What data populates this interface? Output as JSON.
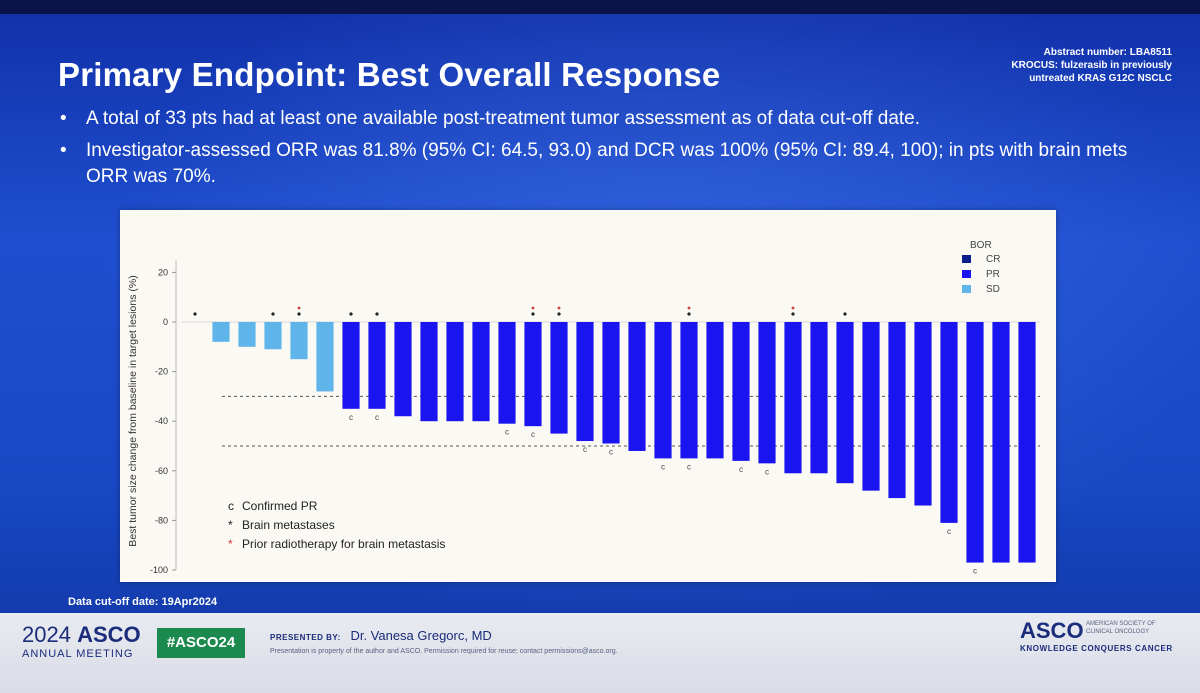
{
  "slide": {
    "title": "Primary Endpoint: Best Overall Response",
    "abstract": [
      "Abstract number: LBA8511",
      "KROCUS: fulzerasib in previously",
      "untreated KRAS G12C NSCLC"
    ],
    "bullets": [
      "A total of 33 pts had at least one available post-treatment tumor assessment as of data cut-off date.",
      "Investigator-assessed ORR was 81.8% (95% CI: 64.5, 93.0) and DCR was 100% (95% CI: 89.4, 100); in pts with brain mets ORR was 70%."
    ],
    "cutoff": "Data cut-off date: 19Apr2024",
    "footer": {
      "year": "2024",
      "asco": "ASCO",
      "annual": "ANNUAL MEETING",
      "hashtag": "#ASCO24",
      "presented_label": "PRESENTED BY:",
      "presenter": "Dr. Vanesa Gregorc, MD",
      "property": "Presentation is property of the author and ASCO. Permission required for reuse; contact permissions@asco.org.",
      "logo": "ASCO",
      "society": "AMERICAN SOCIETY OF CLINICAL ONCOLOGY",
      "tagline": "KNOWLEDGE CONQUERS CANCER"
    }
  },
  "colors": {
    "CR": "#0b1f8c",
    "PR": "#1a14f0",
    "SD": "#5fb5ea",
    "marker_brain": "#222222",
    "marker_radio": "#d23a3a",
    "bg_panel": "#fbf9f4"
  },
  "chart_data": {
    "type": "bar",
    "title": "",
    "ylabel": "Best tumor size change from baseline in target lesions (%)",
    "ylim": [
      -100,
      25
    ],
    "yticks": [
      20,
      0,
      -20,
      -40,
      -60,
      -80,
      -100
    ],
    "reference_lines": [
      -30,
      -50
    ],
    "legend_title": "BOR",
    "legend_items": [
      "CR",
      "PR",
      "SD"
    ],
    "annotation_lines": [
      {
        "symbol": "c",
        "text": "Confirmed PR"
      },
      {
        "symbol": "*",
        "text": "Brain metastases"
      },
      {
        "symbol": "*",
        "text": "Prior radiotherapy for brain metastasis"
      }
    ],
    "values": [
      0,
      -8,
      -10,
      -11,
      -15,
      -28,
      -35,
      -35,
      -38,
      -40,
      -40,
      -40,
      -41,
      -42,
      -45,
      -48,
      -49,
      -52,
      -55,
      -55,
      -55,
      -56,
      -57,
      -61,
      -61,
      -65,
      -68,
      -71,
      -74,
      -81,
      -97,
      -97,
      -97
    ],
    "bor": [
      "SD",
      "SD",
      "SD",
      "SD",
      "SD",
      "SD",
      "PR",
      "PR",
      "PR",
      "PR",
      "PR",
      "PR",
      "PR",
      "PR",
      "PR",
      "PR",
      "PR",
      "PR",
      "PR",
      "PR",
      "PR",
      "PR",
      "PR",
      "PR",
      "PR",
      "PR",
      "PR",
      "PR",
      "PR",
      "PR",
      "PR",
      "PR",
      "PR"
    ],
    "confirmed": [
      6,
      7,
      12,
      13,
      15,
      16,
      18,
      19,
      21,
      22,
      29,
      30
    ],
    "brain_mets": [
      0,
      3,
      4,
      6,
      7,
      13,
      14,
      19,
      23,
      25
    ],
    "prior_radiotherapy": [
      4,
      13,
      14,
      19,
      23
    ]
  }
}
